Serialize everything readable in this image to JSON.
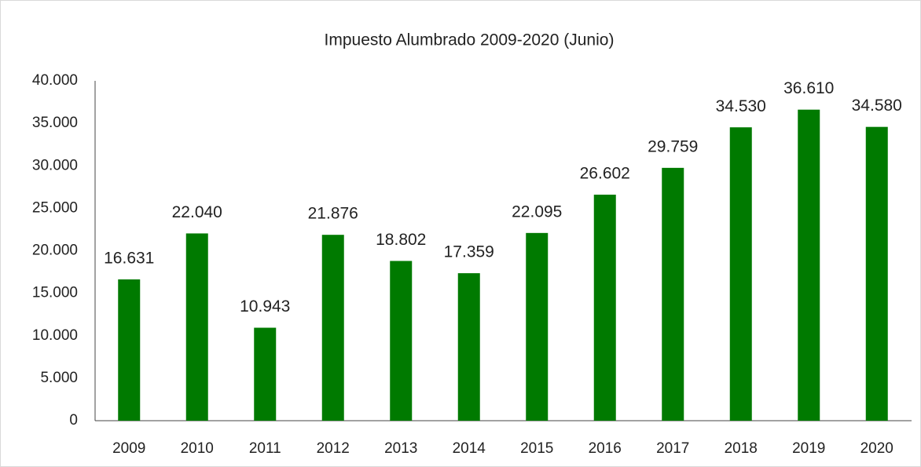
{
  "chart_data": {
    "type": "bar",
    "title": "Impuesto Alumbrado  2009-2020  (Junio)",
    "categories": [
      "2009",
      "2010",
      "2011",
      "2012",
      "2013",
      "2014",
      "2015",
      "2016",
      "2017",
      "2018",
      "2019",
      "2020"
    ],
    "values": [
      16631,
      22040,
      10943,
      21876,
      18802,
      17359,
      22095,
      26602,
      29759,
      34530,
      36610,
      34580
    ],
    "value_labels": [
      "16.631",
      "22.040",
      "10.943",
      "21.876",
      "18.802",
      "17.359",
      "22.095",
      "26.602",
      "29.759",
      "34.530",
      "36.610",
      "34.580"
    ],
    "color": "#007a00",
    "ylim": [
      0,
      40000
    ],
    "yticks": [
      0,
      {
        "value": 5000,
        "label": "5.000"
      },
      {
        "value": 10000,
        "label": "10.000"
      },
      {
        "value": 15000,
        "label": "15.000"
      },
      {
        "value": 20000,
        "label": "20.000"
      },
      {
        "value": 25000,
        "label": "25.000"
      },
      {
        "value": 30000,
        "label": "30.000"
      },
      {
        "value": 35000,
        "label": "35.000"
      },
      {
        "value": 40000,
        "label": "40.000"
      }
    ],
    "grid": false
  }
}
